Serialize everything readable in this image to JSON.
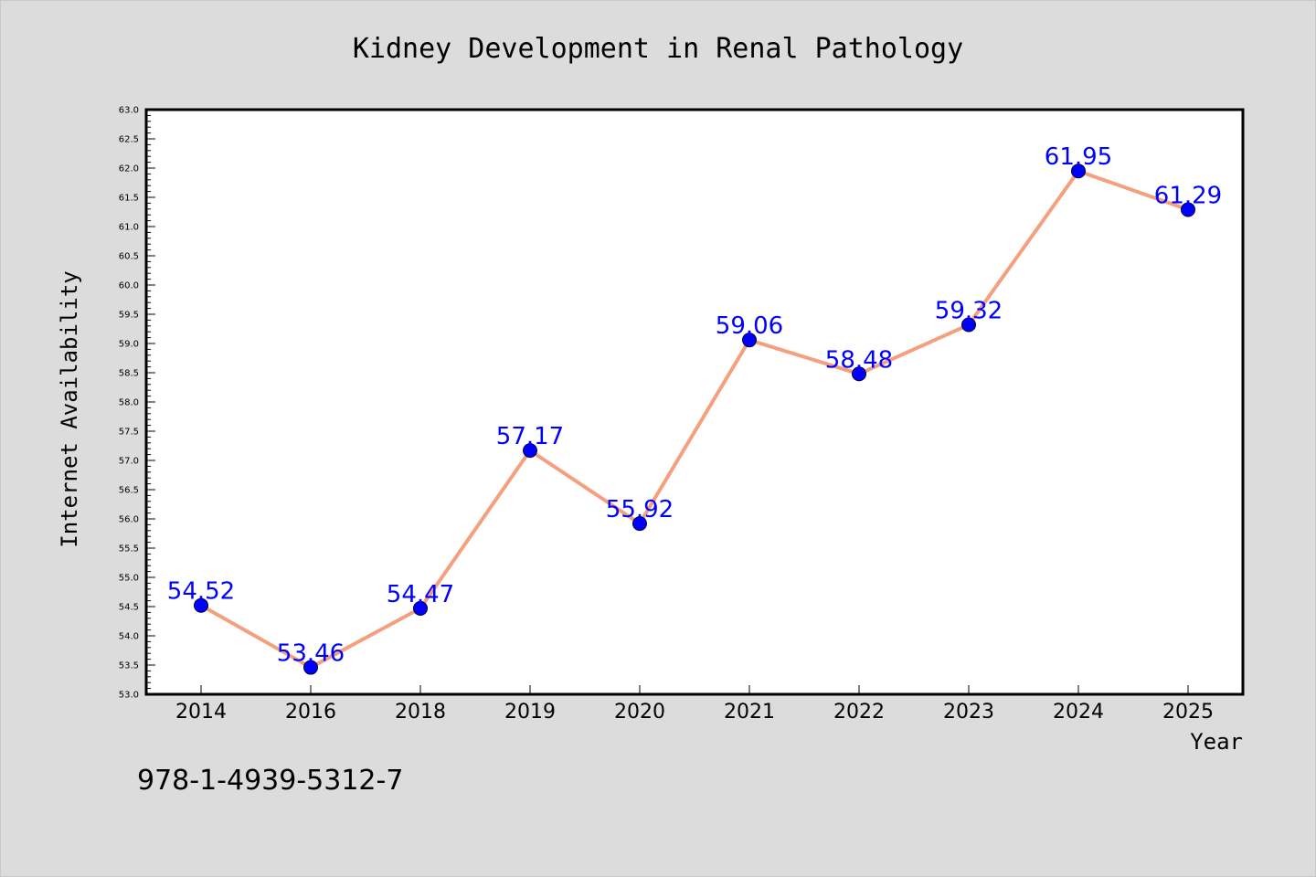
{
  "chart_data": {
    "type": "line",
    "title": "Kidney Development in Renal Pathology",
    "xlabel": "Year",
    "ylabel": "Internet Availability",
    "categories": [
      "2014",
      "2016",
      "2018",
      "2019",
      "2020",
      "2021",
      "2022",
      "2023",
      "2024",
      "2025"
    ],
    "values": [
      54.52,
      53.46,
      54.47,
      57.17,
      55.92,
      59.06,
      58.48,
      59.32,
      61.95,
      61.29
    ],
    "data_labels": [
      "54.52",
      "53.46",
      "54.47",
      "57.17",
      "55.92",
      "59.06",
      "58.48",
      "59.32",
      "61.95",
      "61.29"
    ],
    "ylim": [
      53.0,
      63.0
    ],
    "yticks": [
      "53.0",
      "53.5",
      "54.0",
      "54.5",
      "55.0",
      "55.5",
      "56.0",
      "56.5",
      "57.0",
      "57.5",
      "58.0",
      "58.5",
      "59.0",
      "59.5",
      "60.0",
      "60.5",
      "61.0",
      "61.5",
      "62.0",
      "62.5",
      "63.0"
    ],
    "grid": false,
    "line_color": "#f4a07e",
    "marker_color": "#0000ff",
    "label_color": "#0000ff",
    "background_color": "#dcdcdc",
    "plot_background_color": "#ffffff"
  },
  "footer": {
    "isbn": "978-1-4939-5312-7"
  }
}
